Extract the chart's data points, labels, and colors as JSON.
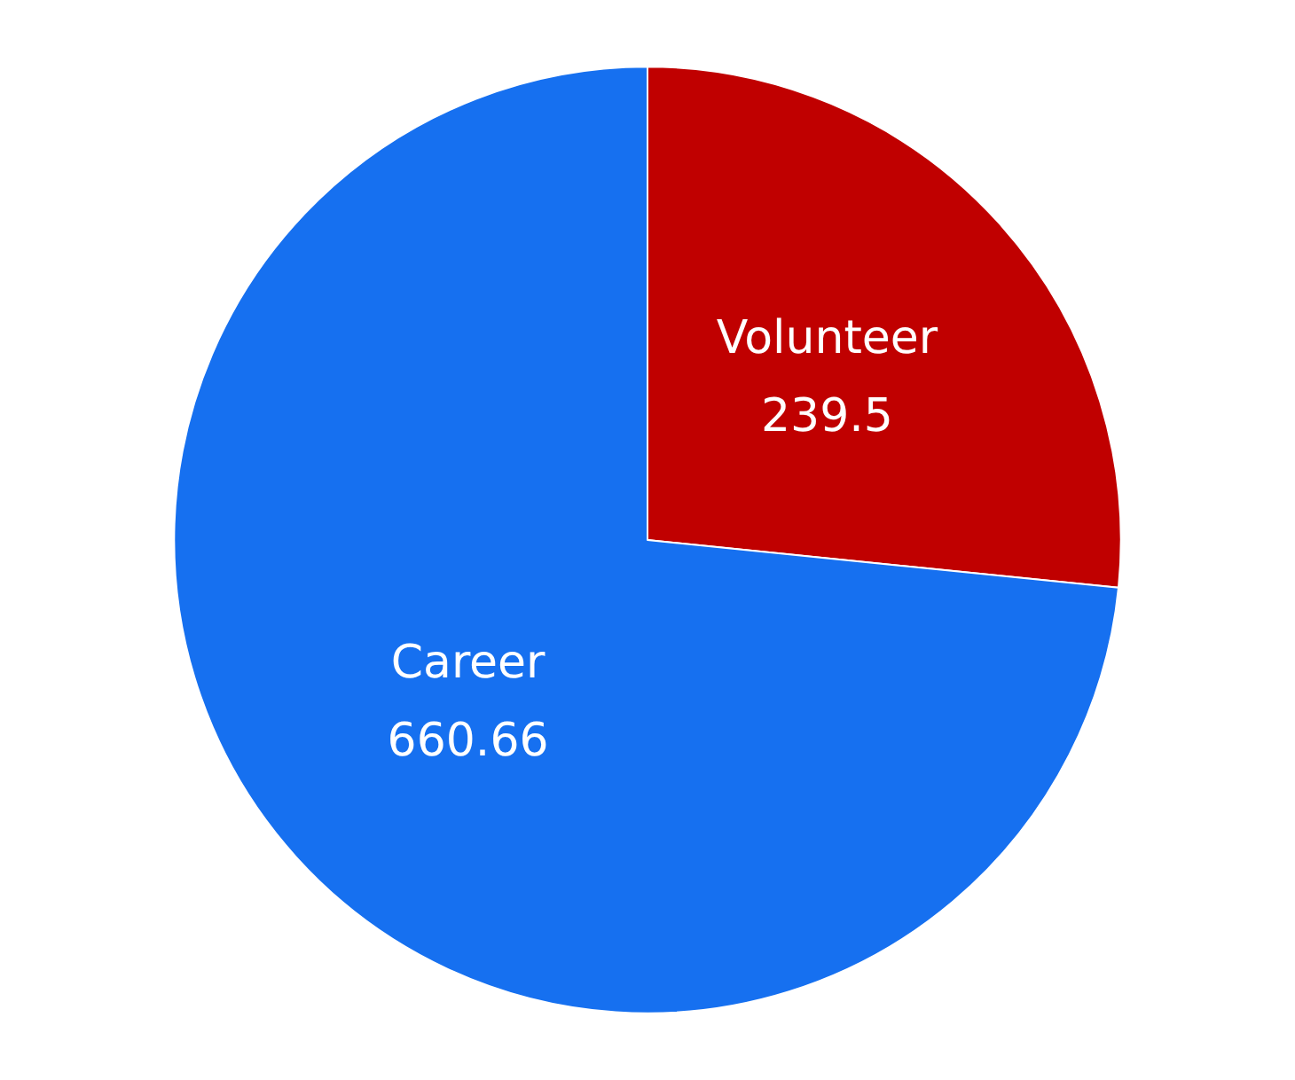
{
  "chart_data": {
    "type": "pie",
    "categories": [
      "Volunteer",
      "Career"
    ],
    "values": [
      239.5,
      660.66
    ],
    "colors": [
      "#c00000",
      "#1670f0"
    ],
    "data_labels": true
  }
}
